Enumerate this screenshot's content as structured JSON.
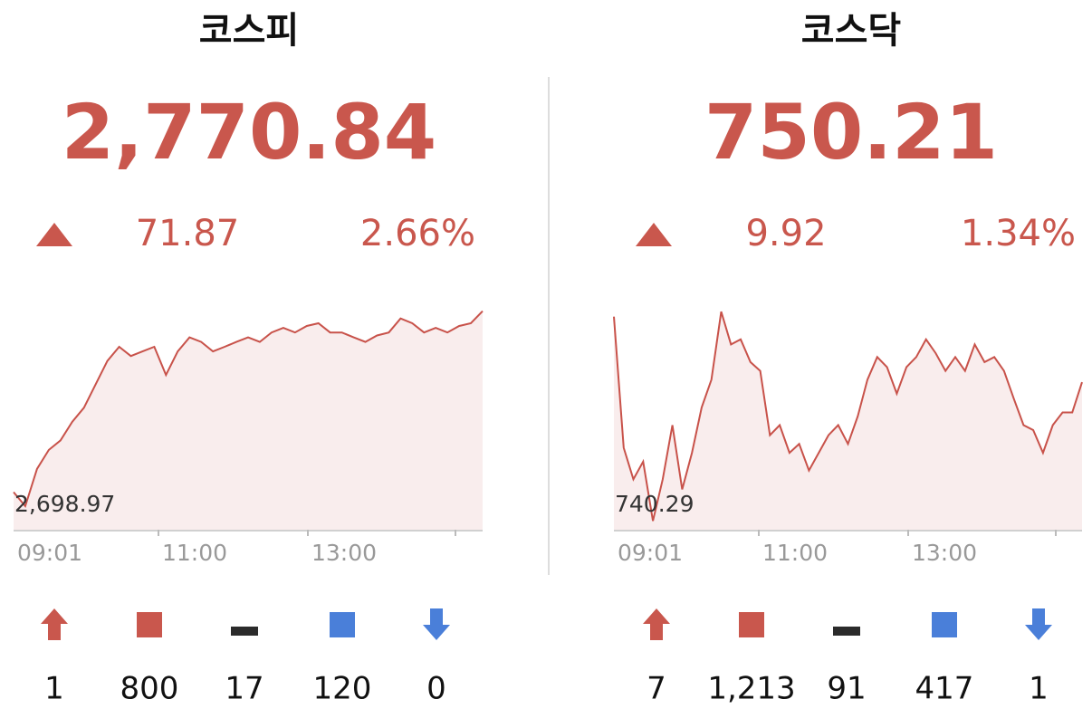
{
  "panels": [
    {
      "name": "코스피",
      "value": "2,770.84",
      "change": "71.87",
      "change_pct": "2.66%",
      "chart": {
        "type": "area",
        "color": "#c8524a",
        "base_label": "2,698.97",
        "ylim": [
          2690,
          2772
        ],
        "xtick_labels": [
          "09:01",
          "11:00",
          "13:00"
        ],
        "values": [
          2703.9,
          2698.7,
          2712.5,
          2719.5,
          2723.0,
          2729.9,
          2735.1,
          2743.8,
          2752.4,
          2757.6,
          2754.2,
          2755.9,
          2757.6,
          2747.2,
          2755.9,
          2761.1,
          2759.4,
          2755.9,
          2757.6,
          2759.4,
          2761.1,
          2759.4,
          2762.9,
          2764.6,
          2762.9,
          2765.3,
          2766.3,
          2762.9,
          2762.9,
          2761.1,
          2759.4,
          2761.8,
          2762.9,
          2768.1,
          2766.3,
          2762.9,
          2764.6,
          2762.9,
          2765.3,
          2766.3,
          2770.8
        ]
      },
      "breadth": [
        "1",
        "800",
        "17",
        "120",
        "0"
      ]
    },
    {
      "name": "코스닥",
      "value": "750.21",
      "change": "9.92",
      "change_pct": "1.34%",
      "chart": {
        "type": "area",
        "color": "#c8524a",
        "base_label": "740.29",
        "ylim": [
          738.5,
          756.1
        ],
        "xtick_labels": [
          "09:01",
          "11:00",
          "13:00"
        ],
        "values": [
          755.4,
          745.0,
          742.5,
          743.9,
          739.2,
          742.5,
          746.8,
          741.7,
          744.6,
          748.2,
          750.4,
          755.8,
          753.2,
          753.6,
          751.8,
          751.1,
          746.0,
          746.8,
          744.6,
          745.3,
          743.2,
          744.6,
          746.0,
          746.8,
          745.3,
          747.5,
          750.4,
          752.2,
          751.4,
          749.3,
          751.4,
          752.2,
          753.6,
          752.5,
          751.1,
          752.2,
          751.1,
          753.2,
          751.8,
          752.2,
          751.1,
          748.9,
          746.8,
          746.4,
          744.6,
          746.8,
          747.8,
          747.8,
          750.2
        ]
      },
      "breadth": [
        "7",
        "1,213",
        "91",
        "417",
        "1"
      ]
    }
  ]
}
